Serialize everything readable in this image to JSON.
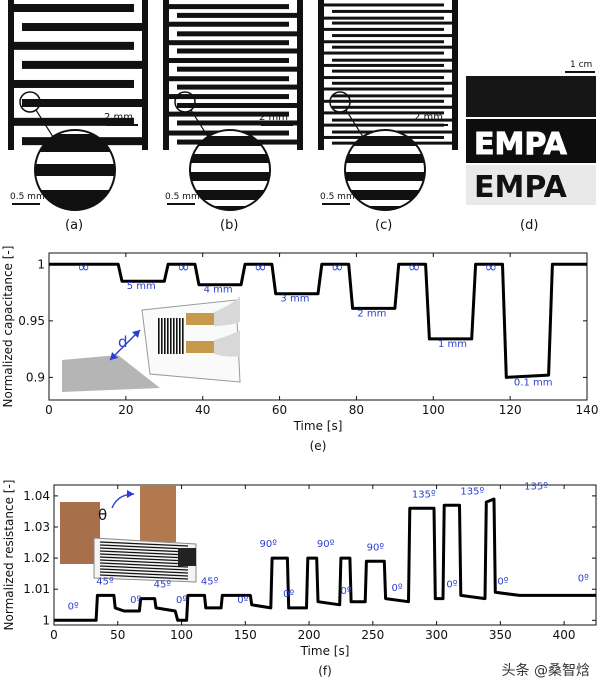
{
  "panels": [
    {
      "id": "a",
      "label": "(a)",
      "scale_main": "2 mm",
      "scale_zoom": "0.5 mm",
      "pitch": 19,
      "line_w": 8,
      "noise": 0.4
    },
    {
      "id": "b",
      "label": "(b)",
      "scale_main": "2 mm",
      "scale_zoom": "0.5 mm",
      "pitch": 9,
      "line_w": 5,
      "noise": 1.2
    },
    {
      "id": "c",
      "label": "(c)",
      "scale_main": "2 mm",
      "scale_zoom": "0.5 mm",
      "pitch": 6,
      "line_w": 3,
      "noise": 1.4
    },
    {
      "id": "d",
      "label": "(d)",
      "scale": "1 cm",
      "word": "EMPA"
    }
  ],
  "chart_data": [
    {
      "id": "e",
      "panel_label": "(e)",
      "type": "line",
      "xlabel": "Time [s]",
      "ylabel": "Normalized capacitance [-]",
      "xlim": [
        0,
        140
      ],
      "ylim": [
        0.88,
        1.01
      ],
      "xticks": [
        0,
        20,
        40,
        60,
        80,
        100,
        120,
        140
      ],
      "yticks": [
        0.9,
        0.95,
        1
      ],
      "ytick_labels": [
        "0.9",
        "0.95",
        "1"
      ],
      "series": [
        {
          "color": "#000000",
          "x": [
            0,
            18,
            19,
            30,
            31,
            38,
            39,
            50,
            51,
            58,
            59,
            70,
            71,
            78,
            79,
            90,
            91,
            98,
            99,
            110,
            111,
            118,
            119,
            130,
            131,
            140
          ],
          "y": [
            1.0,
            1.0,
            0.985,
            0.985,
            1.0,
            1.0,
            0.982,
            0.982,
            1.0,
            1.0,
            0.974,
            0.974,
            1.0,
            1.0,
            0.961,
            0.961,
            1.0,
            1.0,
            0.934,
            0.934,
            1.0,
            1.0,
            0.9,
            0.902,
            1.0,
            1.0
          ]
        }
      ],
      "annotations": [
        {
          "text": "∞",
          "x": 9,
          "y": 0.993
        },
        {
          "text": "5 mm",
          "x": 24,
          "y": 0.978
        },
        {
          "text": "∞",
          "x": 35,
          "y": 0.993
        },
        {
          "text": "4 mm",
          "x": 44,
          "y": 0.975
        },
        {
          "text": "∞",
          "x": 55,
          "y": 0.993
        },
        {
          "text": "3 mm",
          "x": 64,
          "y": 0.967
        },
        {
          "text": "∞",
          "x": 75,
          "y": 0.993
        },
        {
          "text": "2 mm",
          "x": 84,
          "y": 0.954
        },
        {
          "text": "∞",
          "x": 95,
          "y": 0.993
        },
        {
          "text": "1 mm",
          "x": 105,
          "y": 0.927
        },
        {
          "text": "∞",
          "x": 115,
          "y": 0.993
        },
        {
          "text": "0.1 mm",
          "x": 126,
          "y": 0.893
        }
      ],
      "inset": {
        "label": "d"
      }
    },
    {
      "id": "f",
      "panel_label": "(f)",
      "type": "line",
      "xlabel": "Time [s]",
      "ylabel": "Normalized resistance [-]",
      "xlim": [
        0,
        425
      ],
      "ylim": [
        0.9985,
        1.0435
      ],
      "xticks": [
        0,
        50,
        100,
        150,
        200,
        250,
        300,
        350,
        400
      ],
      "yticks": [
        1,
        1.01,
        1.02,
        1.03,
        1.04
      ],
      "ytick_labels": [
        "1",
        "1.01",
        "1.02",
        "1.03",
        "1.04"
      ],
      "series": [
        {
          "color": "#000000",
          "x": [
            0,
            33,
            34,
            47,
            48,
            55,
            56,
            67,
            68,
            79,
            80,
            95,
            97,
            104,
            105,
            118,
            119,
            131,
            132,
            154,
            155,
            170,
            171,
            183,
            184,
            198,
            199,
            206,
            207,
            224,
            225,
            232,
            233,
            244,
            245,
            259,
            260,
            278,
            279,
            298,
            299,
            305,
            306,
            318,
            319,
            338,
            339,
            345,
            346,
            365,
            366,
            385,
            386,
            400,
            425
          ],
          "y": [
            1.0,
            1.0,
            1.008,
            1.008,
            1.004,
            1.003,
            1.003,
            1.003,
            1.007,
            1.007,
            1.004,
            1.003,
            1.0,
            1.0,
            1.008,
            1.008,
            1.004,
            1.004,
            1.008,
            1.008,
            1.005,
            1.004,
            1.02,
            1.02,
            1.004,
            1.004,
            1.02,
            1.02,
            1.006,
            1.005,
            1.02,
            1.02,
            1.006,
            1.006,
            1.019,
            1.019,
            1.007,
            1.006,
            1.036,
            1.036,
            1.007,
            1.007,
            1.037,
            1.037,
            1.008,
            1.007,
            1.038,
            1.039,
            1.009,
            1.008,
            1.008,
            1.008,
            1.008,
            1.008,
            1.008
          ]
        }
      ],
      "annotations": [
        {
          "text": "0º",
          "x": 15,
          "y": 1.0035
        },
        {
          "text": "45º",
          "x": 40,
          "y": 1.0115
        },
        {
          "text": "0º",
          "x": 64,
          "y": 1.0055
        },
        {
          "text": "45º",
          "x": 85,
          "y": 1.0105
        },
        {
          "text": "0º",
          "x": 100,
          "y": 1.0055
        },
        {
          "text": "45º",
          "x": 122,
          "y": 1.0115
        },
        {
          "text": "0º",
          "x": 148,
          "y": 1.0055
        },
        {
          "text": "90º",
          "x": 168,
          "y": 1.0235
        },
        {
          "text": "0º",
          "x": 184,
          "y": 1.0075
        },
        {
          "text": "90º",
          "x": 213,
          "y": 1.0235
        },
        {
          "text": "0º",
          "x": 229,
          "y": 1.0085
        },
        {
          "text": "90º",
          "x": 252,
          "y": 1.0225
        },
        {
          "text": "0º",
          "x": 269,
          "y": 1.0095
        },
        {
          "text": "135º",
          "x": 290,
          "y": 1.0395
        },
        {
          "text": "0º",
          "x": 312,
          "y": 1.0105
        },
        {
          "text": "135º",
          "x": 328,
          "y": 1.0405
        },
        {
          "text": "0º",
          "x": 352,
          "y": 1.0115
        },
        {
          "text": "135º",
          "x": 378,
          "y": 1.042
        },
        {
          "text": "0º",
          "x": 415,
          "y": 1.0125
        }
      ],
      "inset": {
        "label": "θ"
      }
    }
  ],
  "watermark": "头条 @桑智焓"
}
